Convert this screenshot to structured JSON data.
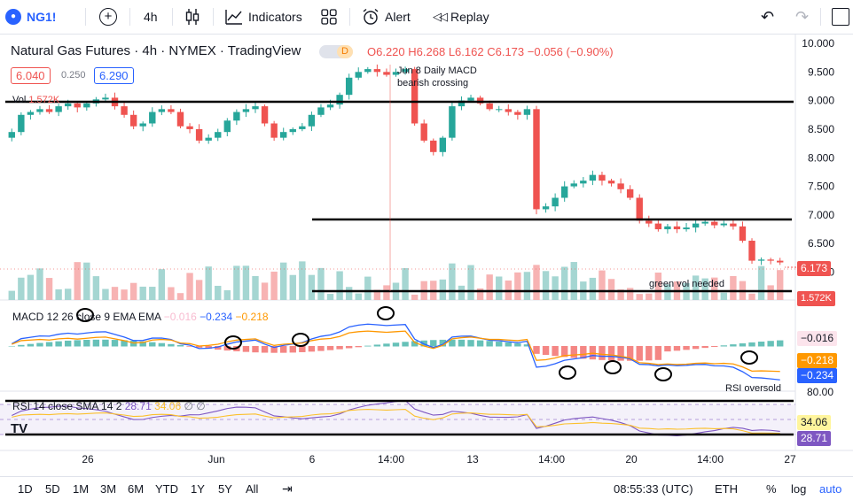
{
  "toolbar": {
    "symbol": "NG1!",
    "interval": "4h",
    "indicators": "Indicators",
    "alert": "Alert",
    "replay": "Replay"
  },
  "legend": {
    "title": "Natural Gas Futures · 4h · NYMEX · TradingView",
    "flag": "D",
    "o": "O6.220",
    "h": "H6.268",
    "l": "L6.162",
    "c": "C6.173",
    "change": "−0.056 (−0.90%)",
    "bid": "6.040",
    "spread": "0.250",
    "ask": "6.290",
    "vol_label": "Vol",
    "vol_value": "1.572K"
  },
  "macd": {
    "label": "MACD 12 26 close 9 EMA EMA",
    "v1": "−0.016",
    "v2": "−0.234",
    "v3": "−0.218",
    "tag_hist": "−0.016",
    "tag_signal": "−0.218",
    "tag_macd": "−0.234"
  },
  "rsi": {
    "label": "RSI 14 close SMA 14 2",
    "v1": "28.71",
    "v2": "34.06",
    "tag_sma": "34.06",
    "tag_rsi": "28.71",
    "axis_top": "80.00"
  },
  "annotations": {
    "macd_cross": "Jun 8 Daily MACD\nbearish crossing",
    "green_vol": "green vol needed",
    "rsi_oversold": "RSI oversold"
  },
  "price_axis": [
    "10.000",
    "9.500",
    "9.000",
    "8.500",
    "8.000",
    "7.500",
    "7.000",
    "6.500",
    "6.000"
  ],
  "price_tag": "6.173",
  "vol_tag": "1.572K",
  "time_axis": [
    "26",
    "Jun",
    "6",
    "14:00",
    "13",
    "14:00",
    "20",
    "14:00",
    "27"
  ],
  "bottom": {
    "ranges": [
      "1D",
      "5D",
      "1M",
      "3M",
      "6M",
      "YTD",
      "1Y",
      "5Y",
      "All"
    ],
    "clock": "08:55:33 (UTC)",
    "session": "ETH",
    "pct": "%",
    "log": "log",
    "auto": "auto"
  },
  "colors": {
    "up": "#26a69a",
    "down": "#ef5350",
    "macd": "#2962ff",
    "signal": "#ff9800",
    "rsi": "#7e57c2",
    "rsi_sma": "#fbc02d"
  },
  "chart_data": {
    "type": "candlestick",
    "title": "Natural Gas Futures · 4h · NYMEX",
    "ylim": [
      5.9,
      10.0
    ],
    "closes": [
      8.45,
      8.75,
      8.8,
      8.85,
      8.8,
      8.9,
      8.95,
      8.88,
      8.95,
      9.02,
      9.05,
      8.9,
      8.75,
      8.55,
      8.6,
      8.8,
      8.85,
      8.8,
      8.55,
      8.5,
      8.3,
      8.35,
      8.45,
      8.65,
      8.8,
      8.85,
      8.9,
      8.6,
      8.35,
      8.45,
      8.5,
      8.55,
      8.75,
      8.88,
      8.93,
      9.1,
      9.4,
      9.5,
      9.55,
      9.5,
      9.45,
      9.5,
      9.55,
      8.6,
      8.3,
      8.1,
      8.35,
      8.9,
      9.0,
      9.05,
      8.95,
      8.85,
      8.85,
      8.8,
      8.75,
      8.85,
      7.1,
      7.15,
      7.3,
      7.5,
      7.55,
      7.6,
      7.7,
      7.6,
      7.55,
      7.45,
      7.3,
      6.9,
      6.85,
      6.75,
      6.8,
      6.75,
      6.78,
      6.85,
      6.88,
      6.82,
      6.85,
      6.8,
      6.55,
      6.2,
      6.22,
      6.2,
      6.17
    ]
  }
}
